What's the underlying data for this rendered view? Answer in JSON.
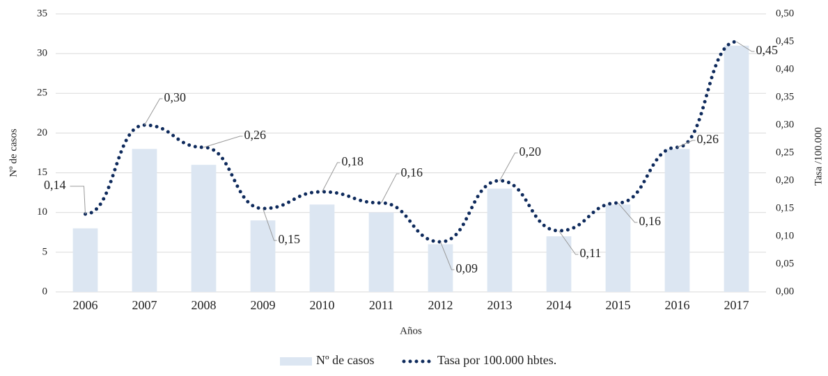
{
  "chart_data": {
    "type": "combo",
    "x_label": "Años",
    "y_label": "Nº de casos",
    "y2_label": "Tasa /100.000",
    "categories": [
      "2006",
      "2007",
      "2008",
      "2009",
      "2010",
      "2011",
      "2012",
      "2013",
      "2014",
      "2015",
      "2016",
      "2017"
    ],
    "series": [
      {
        "name": "Nº de casos",
        "type": "bar",
        "color": "#dce6f2",
        "values": [
          8,
          18,
          16,
          9,
          11,
          10,
          6,
          13,
          7,
          11,
          18,
          31
        ]
      },
      {
        "name": "Tasa por 100.000 hbtes.",
        "type": "line",
        "axis": "y2",
        "color": "#0e2a5c",
        "values": [
          0.14,
          0.3,
          0.26,
          0.15,
          0.18,
          0.16,
          0.09,
          0.2,
          0.11,
          0.16,
          0.26,
          0.45
        ],
        "value_labels": [
          "0,14",
          "0,30",
          "0,26",
          "0,15",
          "0,18",
          "0,16",
          "0,09",
          "0,20",
          "0,11",
          "0,16",
          "0,26",
          "0,45"
        ]
      }
    ],
    "ylim": [
      0,
      35
    ],
    "yticks": [
      0,
      5,
      10,
      15,
      20,
      25,
      30,
      35
    ],
    "y2lim": [
      0,
      0.5
    ],
    "y2ticks": [
      {
        "value": 0,
        "label": "0,00"
      },
      {
        "value": 0.05,
        "label": "0,05"
      },
      {
        "value": 0.1,
        "label": "0,10"
      },
      {
        "value": 0.15,
        "label": "0,15"
      },
      {
        "value": 0.2,
        "label": "0,20"
      },
      {
        "value": 0.25,
        "label": "0,25"
      },
      {
        "value": 0.3,
        "label": "0,30"
      },
      {
        "value": 0.35,
        "label": "0,35"
      },
      {
        "value": 0.4,
        "label": "0,40"
      },
      {
        "value": 0.45,
        "label": "0,45"
      },
      {
        "value": 0.5,
        "label": "0,50"
      }
    ],
    "grid": true
  }
}
